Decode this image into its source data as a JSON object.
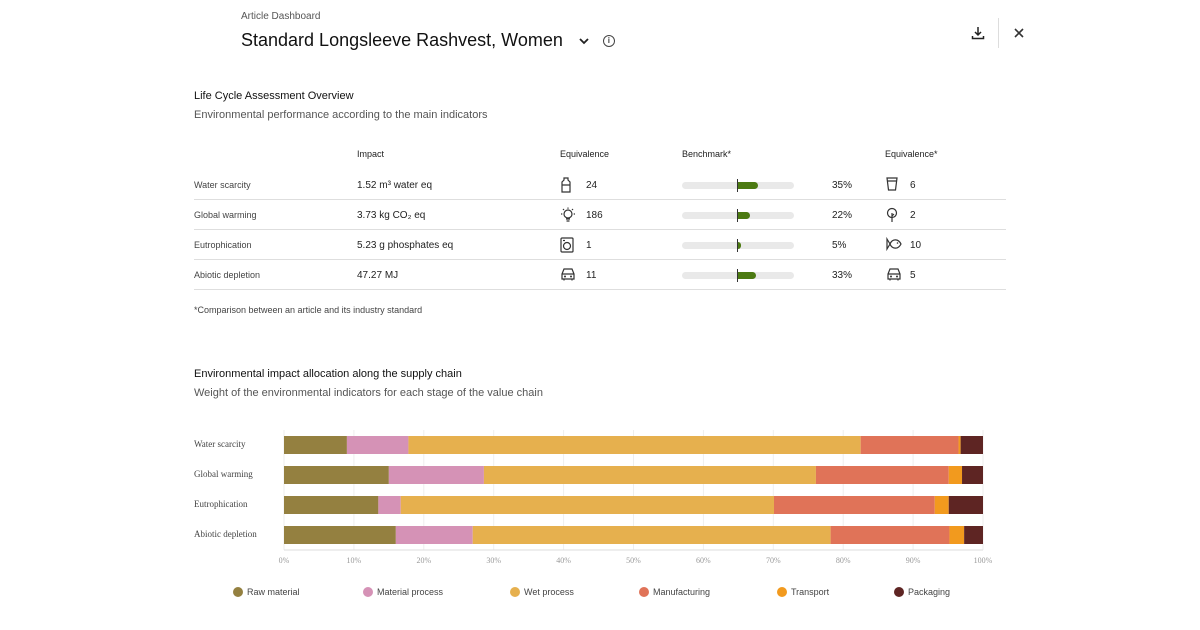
{
  "header": {
    "breadcrumb": "Article Dashboard",
    "title": "Standard Longsleeve Rashvest, Women"
  },
  "lca": {
    "title": "Life Cycle Assessment Overview",
    "subtitle": "Environmental performance according to the main indicators",
    "columns": {
      "impact": "Impact",
      "equivalence": "Equivalence",
      "benchmark": "Benchmark*",
      "equivalence2": "Equivalence*"
    },
    "rows": [
      {
        "name": "Water scarcity",
        "impact_value": "1.52",
        "impact_unit_html": "m³ water eq",
        "eq_icon": "bottle-icon",
        "eq_value": "24",
        "benchmark_pct": 35,
        "benchmark_label": "35%",
        "eq2_icon": "cup-icon",
        "eq2_value": "6"
      },
      {
        "name": "Global warming",
        "impact_value": "3.73",
        "impact_unit_html": "kg CO₂ eq",
        "eq_icon": "lightbulb-icon",
        "eq_value": "186",
        "benchmark_pct": 22,
        "benchmark_label": "22%",
        "eq2_icon": "tree-icon",
        "eq2_value": "2"
      },
      {
        "name": "Eutrophication",
        "impact_value": "5.23",
        "impact_unit_html": "g phosphates eq",
        "eq_icon": "washing-machine-icon",
        "eq_value": "1",
        "benchmark_pct": 5,
        "benchmark_label": "5%",
        "eq2_icon": "fish-icon",
        "eq2_value": "10"
      },
      {
        "name": "Abiotic depletion",
        "impact_value": "47.27",
        "impact_unit_html": "MJ",
        "eq_icon": "car-icon",
        "eq_value": "11",
        "benchmark_pct": 33,
        "benchmark_label": "33%",
        "eq2_icon": "car-icon",
        "eq2_value": "5"
      }
    ],
    "footnote": "*Comparison between an article and its industry standard"
  },
  "supply": {
    "title": "Environmental impact allocation along the supply chain",
    "subtitle": "Weight of the environmental indicators for each stage of the value chain"
  },
  "chart_data": {
    "type": "bar",
    "orientation": "horizontal",
    "stacked": true,
    "categories": [
      "Water scarcity",
      "Global warming",
      "Eutrophication",
      "Abiotic depletion"
    ],
    "series": [
      {
        "name": "Raw material",
        "color": "#948040",
        "values": [
          9,
          15,
          13.5,
          16
        ]
      },
      {
        "name": "Material process",
        "color": "#d592b6",
        "values": [
          8.8,
          13.6,
          3.2,
          11
        ]
      },
      {
        "name": "Wet process",
        "color": "#e6b04e",
        "values": [
          64.7,
          47.5,
          53.4,
          51.2
        ]
      },
      {
        "name": "Manufacturing",
        "color": "#e07358",
        "values": [
          14,
          19,
          23,
          17
        ]
      },
      {
        "name": "Transport",
        "color": "#f29a1e",
        "values": [
          0.3,
          1.9,
          2,
          2.1
        ]
      },
      {
        "name": "Packaging",
        "color": "#5e2523",
        "values": [
          3.2,
          3,
          4.9,
          2.7
        ]
      }
    ],
    "xlim": [
      0,
      100
    ],
    "ticks": [
      "0%",
      "10%",
      "20%",
      "30%",
      "40%",
      "50%",
      "60%",
      "70%",
      "80%",
      "90%",
      "100%"
    ],
    "legend": "bottom"
  }
}
